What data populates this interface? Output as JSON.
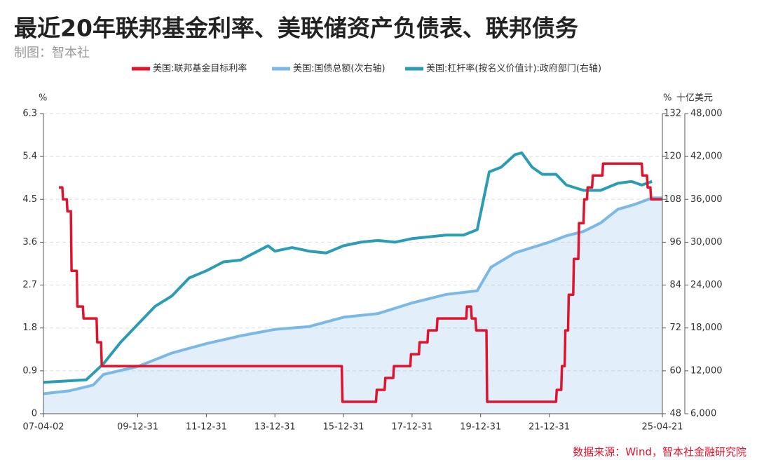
{
  "chart_data": {
    "type": "line",
    "title": "最近20年联邦基金利率、美联储资产负债表、联邦债务",
    "subtitle": "制图：智本社",
    "source": "数据来源：Wind，智本社金融研究院",
    "ylabel": "%",
    "y2label": "%",
    "y3label": "十亿美元",
    "xlim": [
      2007.25,
      2025.3
    ],
    "xticks": [
      {
        "value": 2007.25,
        "label": "07-04-02"
      },
      {
        "value": 2010.0,
        "label": "09-12-31"
      },
      {
        "value": 2012.0,
        "label": "11-12-31"
      },
      {
        "value": 2014.0,
        "label": "13-12-31"
      },
      {
        "value": 2016.0,
        "label": "15-12-31"
      },
      {
        "value": 2018.0,
        "label": "17-12-31"
      },
      {
        "value": 2020.0,
        "label": "19-12-31"
      },
      {
        "value": 2022.0,
        "label": "21-12-31"
      },
      {
        "value": 2025.3,
        "label": "25-04-21"
      }
    ],
    "ylim": [
      0,
      6.3
    ],
    "yticks": [
      0,
      0.9,
      1.8,
      2.7,
      3.6,
      4.5,
      5.4,
      6.3
    ],
    "y2lim": [
      48,
      132
    ],
    "y2ticks": [
      48,
      60,
      72,
      84,
      96,
      108,
      120,
      132
    ],
    "y3lim": [
      6000,
      48000
    ],
    "y3ticks": [
      {
        "value": 6000,
        "label": "6,000"
      },
      {
        "value": 12000,
        "label": "12,000"
      },
      {
        "value": 18000,
        "label": "18,000"
      },
      {
        "value": 24000,
        "label": "24,000"
      },
      {
        "value": 30000,
        "label": "30,000"
      },
      {
        "value": 36000,
        "label": "36,000"
      },
      {
        "value": 42000,
        "label": "42,000"
      },
      {
        "value": 48000,
        "label": "48,000"
      }
    ],
    "grid": true,
    "series": [
      {
        "name": "美国:联邦基金目标利率",
        "color": "#e0122c",
        "axis": "y",
        "x": [
          2007.7,
          2007.8,
          2007.82,
          2007.93,
          2007.95,
          2008.05,
          2008.07,
          2008.22,
          2008.24,
          2008.4,
          2008.42,
          2008.8,
          2008.82,
          2008.93,
          2008.95,
          2015.95,
          2015.97,
          2016.95,
          2016.97,
          2017.2,
          2017.22,
          2017.45,
          2017.47,
          2017.95,
          2017.97,
          2018.2,
          2018.22,
          2018.45,
          2018.47,
          2018.72,
          2018.74,
          2019.58,
          2019.6,
          2019.72,
          2019.74,
          2019.85,
          2019.87,
          2020.17,
          2020.19,
          2022.2,
          2022.22,
          2022.35,
          2022.37,
          2022.45,
          2022.47,
          2022.55,
          2022.57,
          2022.7,
          2022.72,
          2022.85,
          2022.87,
          2023.0,
          2023.02,
          2023.1,
          2023.12,
          2023.25,
          2023.27,
          2023.55,
          2023.57,
          2024.7,
          2024.72,
          2024.85,
          2024.87,
          2024.95,
          2024.97,
          2025.3
        ],
        "values": [
          4.75,
          4.75,
          4.5,
          4.5,
          4.25,
          4.25,
          3.0,
          3.0,
          2.25,
          2.25,
          2.0,
          2.0,
          1.5,
          1.5,
          1.0,
          1.0,
          0.25,
          0.25,
          0.5,
          0.5,
          0.75,
          0.75,
          1.0,
          1.0,
          1.25,
          1.25,
          1.5,
          1.5,
          1.75,
          1.75,
          2.0,
          2.0,
          2.25,
          2.25,
          2.0,
          2.0,
          1.75,
          1.75,
          0.25,
          0.25,
          0.5,
          0.5,
          1.0,
          1.0,
          1.75,
          1.75,
          2.5,
          2.5,
          3.25,
          3.25,
          4.0,
          4.0,
          4.5,
          4.5,
          4.75,
          4.75,
          5.0,
          5.0,
          5.25,
          5.25,
          5.0,
          5.0,
          4.75,
          4.75,
          4.5,
          4.5
        ]
      },
      {
        "name": "美国:国债总额(次右轴)",
        "color": "#7ab8e8",
        "axis": "y3",
        "x": [
          2007.25,
          2008.0,
          2008.7,
          2009.0,
          2010.0,
          2011.0,
          2012.0,
          2013.0,
          2014.0,
          2015.0,
          2016.0,
          2017.0,
          2018.0,
          2019.0,
          2019.9,
          2020.3,
          2021.0,
          2022.0,
          2022.5,
          2023.0,
          2023.5,
          2024.0,
          2024.5,
          2025.0,
          2025.3
        ],
        "values": [
          8800,
          9200,
          10000,
          11500,
          12600,
          14500,
          15800,
          16900,
          17800,
          18200,
          19500,
          20000,
          21500,
          22700,
          23200,
          26500,
          28500,
          30000,
          30900,
          31500,
          32700,
          34600,
          35300,
          36200,
          36200
        ]
      },
      {
        "name": "美国:杠杆率(按名义价值计):政府部门(右轴)",
        "color": "#2a9db5",
        "axis": "y2",
        "x": [
          2007.25,
          2008.0,
          2008.5,
          2009.0,
          2009.5,
          2010.0,
          2010.5,
          2011.0,
          2011.5,
          2012.0,
          2012.5,
          2013.0,
          2013.5,
          2013.8,
          2014.0,
          2014.5,
          2015.0,
          2015.5,
          2016.0,
          2016.5,
          2017.0,
          2017.5,
          2018.0,
          2018.5,
          2019.0,
          2019.5,
          2019.9,
          2020.25,
          2020.6,
          2021.0,
          2021.2,
          2021.5,
          2021.8,
          2022.2,
          2022.5,
          2023.0,
          2023.5,
          2024.0,
          2024.4,
          2024.7,
          2025.0
        ],
        "values": [
          56.8,
          57.2,
          57.5,
          62,
          68,
          73,
          78,
          81,
          86,
          88,
          90.5,
          91,
          93.5,
          95,
          93.5,
          94.5,
          93.5,
          93,
          95,
          96,
          96.5,
          96,
          97,
          97.5,
          98,
          98,
          99.5,
          115.7,
          117,
          120.5,
          121,
          117,
          115,
          115,
          112,
          110.5,
          110.5,
          112.5,
          113,
          112,
          113
        ]
      }
    ]
  }
}
